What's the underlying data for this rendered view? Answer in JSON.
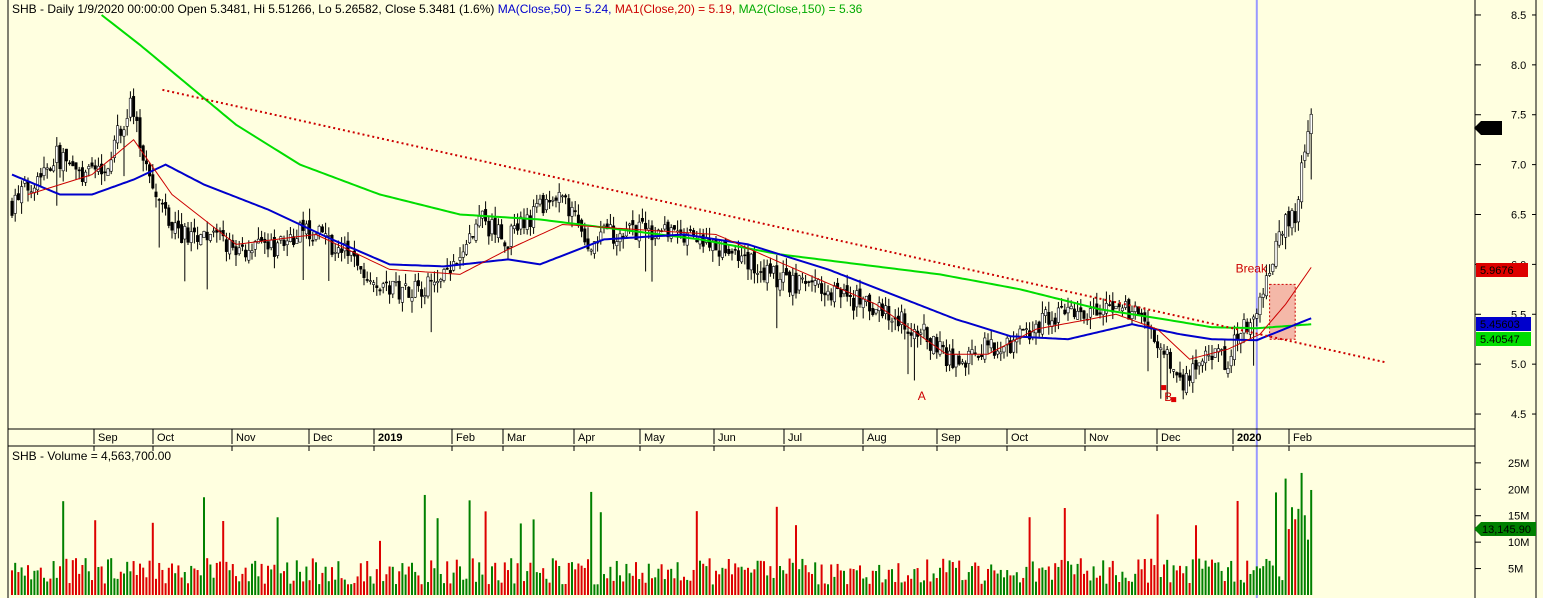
{
  "header": {
    "ticker": "SHB",
    "period": "Daily",
    "date": "1/9/2020 00:00:00",
    "ohlc_text": "Open 5.3481, Hi 5.51266, Lo 5.26582, Close 5.3481 (1.6%)",
    "ma50_text": "MA(Close,50) = 5.24,",
    "ma20_text": "MA1(Close,20) = 5.19,",
    "ma150_text": "MA2(Close,150) = 5.36",
    "volume_text": "SHB - Volume = 4,563,700.00"
  },
  "colors": {
    "background": "#FFFFE0",
    "up_candle": "#000000",
    "ma50": "#0000CC",
    "ma20": "#CC0000",
    "ma150": "#00DD00",
    "trendline": "#CC0000",
    "volume_up": "#008000",
    "volume_down": "#DD0000",
    "cursor_line": "#9999FF",
    "break_box": "#F4B8A8"
  },
  "labels": {
    "break": "Break",
    "point_a": "A",
    "point_b": "B"
  },
  "price_badges": {
    "last": "7.4",
    "ma20": "5.9676",
    "ma50": "5.45603",
    "ma150": "5.40547",
    "volume": "13,145.90"
  },
  "chart_data": {
    "type": "candlestick",
    "x_ticks": [
      "Sep",
      "Oct",
      "Nov",
      "Dec",
      "2019",
      "Feb",
      "Mar",
      "Apr",
      "May",
      "Jun",
      "Jul",
      "Aug",
      "Sep",
      "Oct",
      "Nov",
      "Dec",
      "2020",
      "Feb"
    ],
    "y_ticks": [
      "4.5",
      "5.0",
      "5.5",
      "6.0",
      "6.5",
      "7.0",
      "7.5",
      "8.0",
      "8.5"
    ],
    "ylim": [
      4.35,
      8.65
    ],
    "volume_ticks": [
      "5M",
      "10M",
      "15M",
      "20M",
      "25M"
    ],
    "volume_ylim": [
      0,
      28000000
    ],
    "price_anchors": [
      [
        0,
        6.6
      ],
      [
        8,
        6.9
      ],
      [
        14,
        7.1
      ],
      [
        22,
        6.85
      ],
      [
        30,
        7.05
      ],
      [
        37,
        7.6
      ],
      [
        40,
        7.2
      ],
      [
        46,
        6.6
      ],
      [
        52,
        6.3
      ],
      [
        60,
        6.3
      ],
      [
        70,
        6.15
      ],
      [
        80,
        6.15
      ],
      [
        92,
        6.35
      ],
      [
        105,
        6.1
      ],
      [
        118,
        5.75
      ],
      [
        132,
        5.8
      ],
      [
        140,
        6.0
      ],
      [
        146,
        6.45
      ],
      [
        155,
        6.25
      ],
      [
        165,
        6.55
      ],
      [
        172,
        6.65
      ],
      [
        180,
        6.2
      ],
      [
        190,
        6.35
      ],
      [
        205,
        6.3
      ],
      [
        220,
        6.2
      ],
      [
        240,
        5.85
      ],
      [
        255,
        5.75
      ],
      [
        270,
        5.55
      ],
      [
        285,
        5.3
      ],
      [
        295,
        5.0
      ],
      [
        303,
        5.15
      ],
      [
        312,
        5.2
      ],
      [
        322,
        5.45
      ],
      [
        335,
        5.5
      ],
      [
        345,
        5.55
      ],
      [
        355,
        5.45
      ],
      [
        365,
        4.8
      ],
      [
        372,
        5.05
      ],
      [
        380,
        5.05
      ],
      [
        385,
        5.4
      ],
      [
        389,
        5.5
      ],
      [
        393,
        6.0
      ],
      [
        397,
        6.4
      ],
      [
        401,
        6.5
      ],
      [
        403,
        7.0
      ],
      [
        406,
        7.4
      ]
    ],
    "ma20_anchors": [
      [
        5,
        6.7
      ],
      [
        25,
        6.9
      ],
      [
        38,
        7.25
      ],
      [
        50,
        6.7
      ],
      [
        70,
        6.2
      ],
      [
        95,
        6.3
      ],
      [
        118,
        5.95
      ],
      [
        140,
        5.9
      ],
      [
        155,
        6.15
      ],
      [
        172,
        6.4
      ],
      [
        195,
        6.35
      ],
      [
        220,
        6.3
      ],
      [
        245,
        5.95
      ],
      [
        270,
        5.6
      ],
      [
        292,
        5.1
      ],
      [
        305,
        5.1
      ],
      [
        320,
        5.35
      ],
      [
        345,
        5.5
      ],
      [
        358,
        5.35
      ],
      [
        368,
        5.05
      ],
      [
        380,
        5.15
      ],
      [
        390,
        5.3
      ],
      [
        398,
        5.6
      ],
      [
        406,
        5.97
      ]
    ],
    "ma50_anchors": [
      [
        0,
        6.9
      ],
      [
        15,
        6.7
      ],
      [
        25,
        6.7
      ],
      [
        38,
        6.85
      ],
      [
        48,
        7.0
      ],
      [
        60,
        6.8
      ],
      [
        80,
        6.55
      ],
      [
        100,
        6.25
      ],
      [
        118,
        6.0
      ],
      [
        135,
        5.98
      ],
      [
        155,
        6.05
      ],
      [
        165,
        6.0
      ],
      [
        185,
        6.25
      ],
      [
        210,
        6.3
      ],
      [
        230,
        6.2
      ],
      [
        255,
        5.95
      ],
      [
        275,
        5.7
      ],
      [
        295,
        5.45
      ],
      [
        312,
        5.28
      ],
      [
        330,
        5.25
      ],
      [
        350,
        5.4
      ],
      [
        365,
        5.3
      ],
      [
        375,
        5.25
      ],
      [
        389,
        5.24
      ],
      [
        406,
        5.46
      ]
    ],
    "ma150_anchors": [
      [
        28,
        8.5
      ],
      [
        40,
        8.2
      ],
      [
        55,
        7.8
      ],
      [
        70,
        7.4
      ],
      [
        90,
        7.0
      ],
      [
        115,
        6.7
      ],
      [
        140,
        6.5
      ],
      [
        165,
        6.45
      ],
      [
        190,
        6.35
      ],
      [
        215,
        6.25
      ],
      [
        240,
        6.1
      ],
      [
        265,
        6.0
      ],
      [
        290,
        5.9
      ],
      [
        315,
        5.75
      ],
      [
        340,
        5.55
      ],
      [
        360,
        5.45
      ],
      [
        375,
        5.37
      ],
      [
        389,
        5.36
      ],
      [
        406,
        5.4
      ]
    ],
    "trendline": {
      "from": [
        47,
        7.75
      ],
      "to": [
        429,
        5.02
      ]
    },
    "break_zone": {
      "x": [
        393,
        401
      ],
      "y": [
        5.25,
        5.8
      ]
    },
    "point_a": {
      "x": 284,
      "y": 4.82
    },
    "point_b": {
      "x": 361,
      "y": 4.73
    },
    "cursor_x": 389
  }
}
